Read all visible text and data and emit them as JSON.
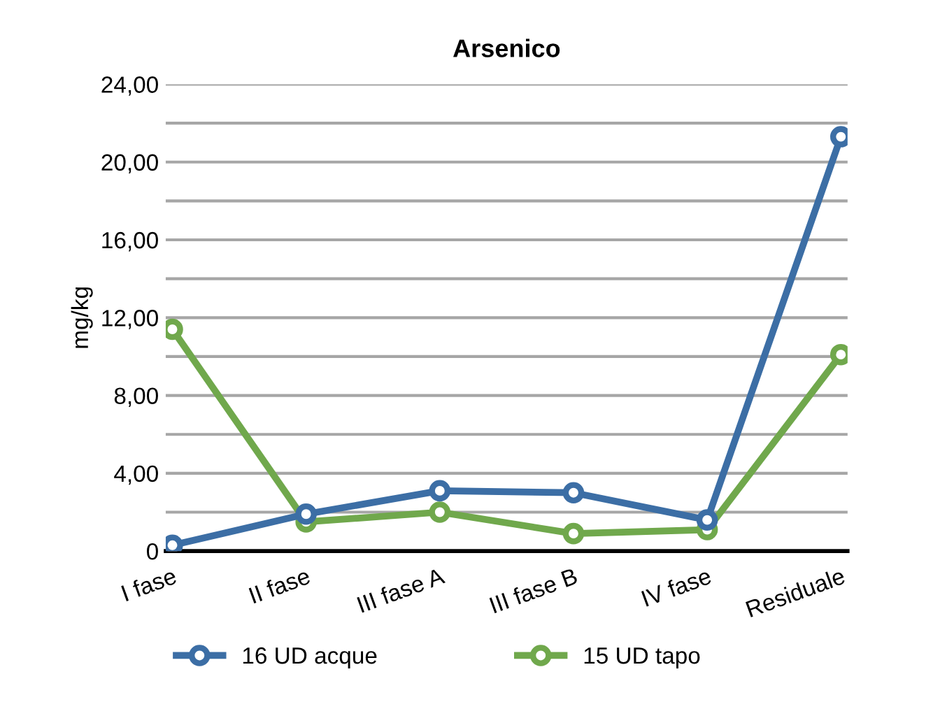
{
  "chart_data": {
    "type": "line",
    "title": "Arsenico",
    "ylabel": "mg/kg",
    "categories": [
      "I fase",
      "II fase",
      "III fase A",
      "III fase B",
      "IV fase",
      "Residuale"
    ],
    "series": [
      {
        "name": "16 UD acque",
        "color": "#3c6ea5",
        "values": [
          0.3,
          1.9,
          3.1,
          3.0,
          1.6,
          21.3
        ]
      },
      {
        "name": "15 UD tapo",
        "color": "#70a84c",
        "values": [
          11.4,
          1.5,
          2.0,
          0.9,
          1.1,
          10.1
        ]
      }
    ],
    "ylim": [
      0,
      24
    ],
    "yticks": [
      {
        "value": 0,
        "label": "0"
      },
      {
        "value": 2,
        "label": null
      },
      {
        "value": 4,
        "label": "4,00"
      },
      {
        "value": 6,
        "label": null
      },
      {
        "value": 8,
        "label": "8,00"
      },
      {
        "value": 10,
        "label": null
      },
      {
        "value": 12,
        "label": "12,00"
      },
      {
        "value": 14,
        "label": null
      },
      {
        "value": 16,
        "label": "16,00"
      },
      {
        "value": 18,
        "label": null
      },
      {
        "value": 20,
        "label": "20,00"
      },
      {
        "value": 22,
        "label": null
      },
      {
        "value": 24,
        "label": "24,00"
      }
    ],
    "grid": "y",
    "legend": "bottom",
    "marker": "circle",
    "line_style": "solid"
  }
}
